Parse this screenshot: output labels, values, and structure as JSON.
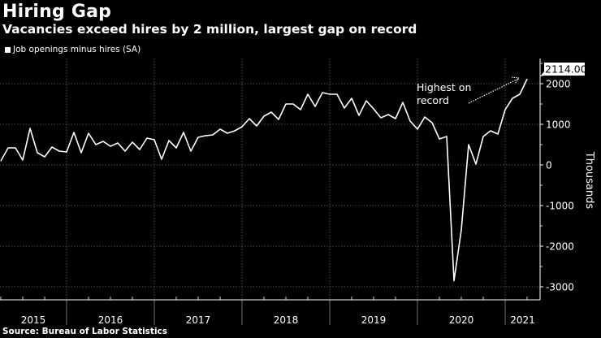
{
  "header": {
    "title": "Hiring Gap",
    "subtitle": "Vacancies exceed hires by 2 million, largest gap on record"
  },
  "source": "Source: Bureau of Labor Statistics",
  "colors": {
    "background": "#000000",
    "line": "#ffffff",
    "grid": "#555555"
  },
  "chart_data": {
    "type": "line",
    "title": "Hiring Gap",
    "ylabel": "Thousands",
    "xlabel": "",
    "ylim": [
      -3300,
      2600
    ],
    "yticks": [
      -3000,
      -2000,
      -1000,
      0,
      1000,
      2000
    ],
    "ytick_labels": [
      "-3000",
      "-2000",
      "-1000",
      "0",
      "1000",
      "2000"
    ],
    "xtick_labels": [
      "2015",
      "2016",
      "2017",
      "2018",
      "2019",
      "2020",
      "2021"
    ],
    "grid": true,
    "legend_position": "top-left",
    "start": "2015-04",
    "frequency": "monthly",
    "series": [
      {
        "name": "Job openings minus hires (SA)",
        "values": [
          100,
          420,
          420,
          120,
          900,
          300,
          200,
          440,
          340,
          320,
          800,
          300,
          780,
          500,
          580,
          460,
          540,
          340,
          560,
          380,
          660,
          620,
          140,
          600,
          420,
          800,
          340,
          680,
          720,
          740,
          880,
          780,
          840,
          940,
          1140,
          960,
          1200,
          1300,
          1120,
          1500,
          1500,
          1360,
          1740,
          1440,
          1780,
          1740,
          1740,
          1400,
          1640,
          1220,
          1580,
          1380,
          1160,
          1240,
          1140,
          1540,
          1080,
          880,
          1180,
          1040,
          640,
          700,
          -2850,
          -1600,
          500,
          20,
          700,
          840,
          760,
          1360,
          1640,
          1740,
          2114
        ]
      }
    ],
    "last_value_label": "2114.00",
    "annotation": {
      "line1": "Highest on",
      "line2": "record"
    }
  }
}
